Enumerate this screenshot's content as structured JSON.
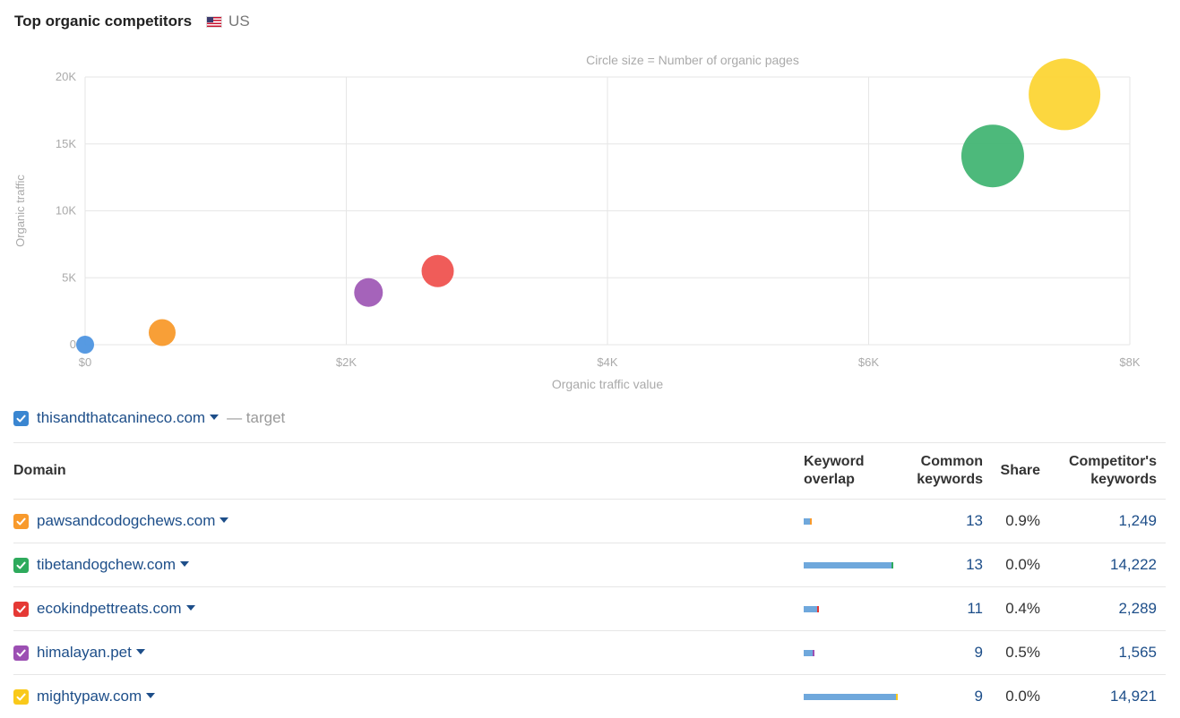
{
  "header": {
    "title": "Top organic competitors",
    "flag_icon": "us-flag-icon",
    "country": "US"
  },
  "chart_data": {
    "type": "scatter",
    "title": "Circle size = Number of organic pages",
    "xlabel": "Organic traffic value",
    "ylabel": "Organic traffic",
    "xlim": [
      0,
      8000
    ],
    "ylim": [
      0,
      20000
    ],
    "x_ticks": [
      "$0",
      "$2K",
      "$4K",
      "$6K",
      "$8K"
    ],
    "y_ticks": [
      "0",
      "5K",
      "10K",
      "15K",
      "20K"
    ],
    "grid": true,
    "series": [
      {
        "domain": "thisandthatcanineco.com",
        "x": 0,
        "y": 0,
        "size": 1,
        "color": "#4e95e0"
      },
      {
        "domain": "pawsandcodogchews.com",
        "x": 590,
        "y": 900,
        "size": 1.5,
        "color": "#f89a2c"
      },
      {
        "domain": "himalayan.pet",
        "x": 2170,
        "y": 3900,
        "size": 1.6,
        "color": "#a05bb6"
      },
      {
        "domain": "ecokindpettreats.com",
        "x": 2700,
        "y": 5500,
        "size": 1.8,
        "color": "#ef5350"
      },
      {
        "domain": "tibetandogchew.com",
        "x": 6950,
        "y": 14100,
        "size": 3.5,
        "color": "#43b574"
      },
      {
        "domain": "mightypaw.com",
        "x": 7500,
        "y": 18700,
        "size": 4,
        "color": "#fcd535"
      }
    ]
  },
  "target": {
    "domain": "thisandthatcanineco.com",
    "suffix": "— target",
    "color": "#3a86d1"
  },
  "table": {
    "headers": {
      "domain": "Domain",
      "overlap_1": "Keyword",
      "overlap_2": "overlap",
      "common_1": "Common",
      "common_2": "keywords",
      "share": "Share",
      "comp_1": "Competitor's",
      "comp_2": "keywords"
    },
    "rows": [
      {
        "domain": "pawsandcodogchews.com",
        "color": "#f89a2c",
        "overlap": 0.07,
        "common": "13",
        "share": "0.9%",
        "competitor_keywords": "1,249"
      },
      {
        "domain": "tibetandogchew.com",
        "color": "#2eaa5c",
        "overlap": 0.98,
        "common": "13",
        "share": "0.0%",
        "competitor_keywords": "14,222"
      },
      {
        "domain": "ecokindpettreats.com",
        "color": "#e53935",
        "overlap": 0.15,
        "common": "11",
        "share": "0.4%",
        "competitor_keywords": "2,289"
      },
      {
        "domain": "himalayan.pet",
        "color": "#9c4fb3",
        "overlap": 0.1,
        "common": "9",
        "share": "0.5%",
        "competitor_keywords": "1,565"
      },
      {
        "domain": "mightypaw.com",
        "color": "#f9c91a",
        "overlap": 1.03,
        "common": "9",
        "share": "0.0%",
        "competitor_keywords": "14,921"
      }
    ]
  }
}
